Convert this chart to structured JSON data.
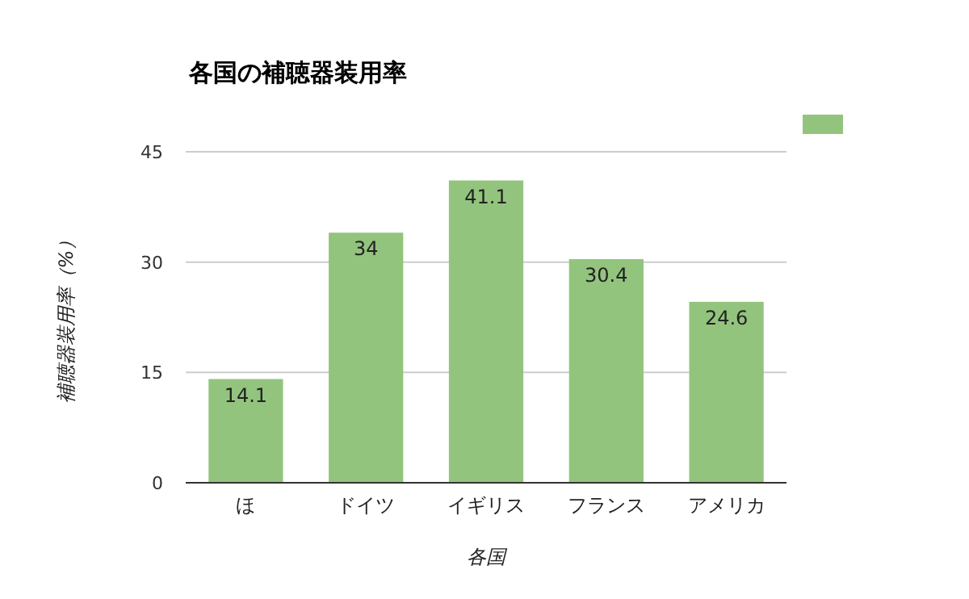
{
  "chart_data": {
    "type": "bar",
    "title": "各国の補聴器装用率",
    "xlabel": "各国",
    "ylabel": "補聴器装用率（%）",
    "categories": [
      "ほ",
      "ドイツ",
      "イギリス",
      "フランス",
      "アメリカ"
    ],
    "values": [
      14.1,
      34,
      41.1,
      30.4,
      24.6
    ],
    "color": "#93c47d",
    "ylim": [
      0,
      45
    ],
    "yticks": [
      0,
      15,
      30,
      45
    ],
    "grid": "y",
    "data_labels": true
  }
}
